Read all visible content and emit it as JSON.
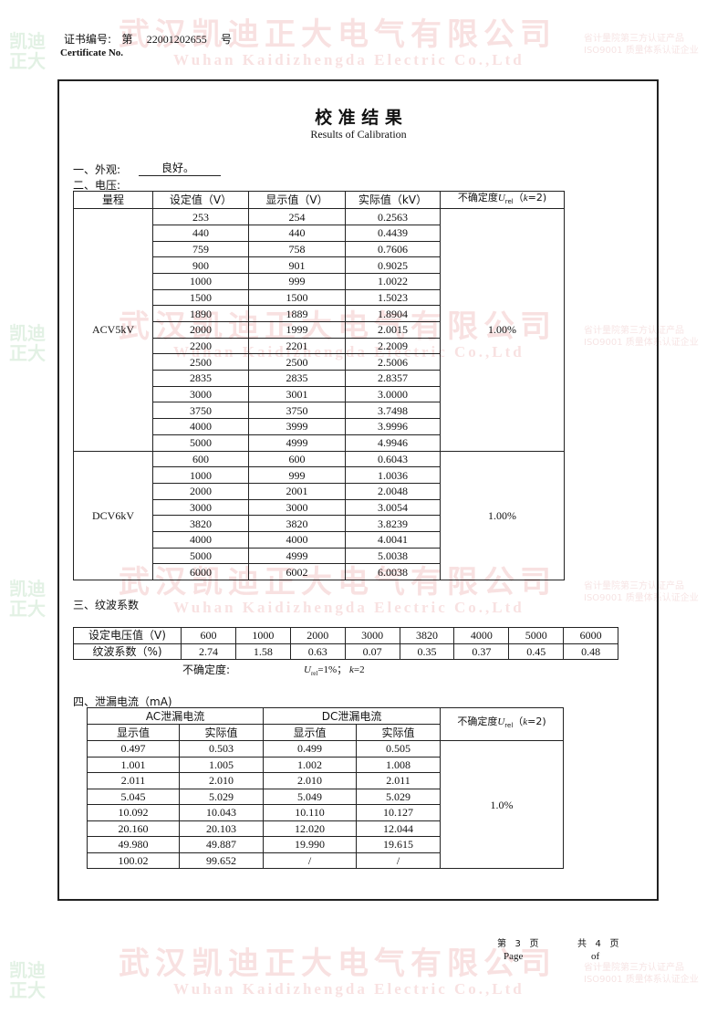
{
  "watermark": {
    "company_cn": "武汉凯迪正大电气有限公司",
    "company_en": "Wuhan Kaidizhengda Electric Co.,Ltd",
    "logo_text_1": "凯迪",
    "logo_text_2": "正大",
    "badge_line1": "省计量院第三方认证产品",
    "badge_line2": "ISO9001 质量体系认证企业"
  },
  "header": {
    "cert_label": "证书编号:",
    "num_prefix": "第",
    "cert_no": "22001202655",
    "num_suffix": "号",
    "cert_label_en": "Certificate No."
  },
  "title": "校 准 结 果",
  "subtitle": "Results of Calibration",
  "appearance": {
    "label": "一、外观:",
    "value": "良好。"
  },
  "voltage": {
    "label": "二、电压:",
    "headers": [
      "量程",
      "设定值（V）",
      "显示值（V）",
      "实际值（kV）"
    ],
    "uncertainty_header": {
      "prefix": "不确定度",
      "symbol": "U",
      "sub": "rel",
      "open": "（",
      "k": "k",
      "close": "=2)"
    },
    "groups": [
      {
        "range": "ACV5kV",
        "uncertainty": "1.00%",
        "rows": [
          [
            "253",
            "254",
            "0.2563"
          ],
          [
            "440",
            "440",
            "0.4439"
          ],
          [
            "759",
            "758",
            "0.7606"
          ],
          [
            "900",
            "901",
            "0.9025"
          ],
          [
            "1000",
            "999",
            "1.0022"
          ],
          [
            "1500",
            "1500",
            "1.5023"
          ],
          [
            "1890",
            "1889",
            "1.8904"
          ],
          [
            "2000",
            "1999",
            "2.0015"
          ],
          [
            "2200",
            "2201",
            "2.2009"
          ],
          [
            "2500",
            "2500",
            "2.5006"
          ],
          [
            "2835",
            "2835",
            "2.8357"
          ],
          [
            "3000",
            "3001",
            "3.0000"
          ],
          [
            "3750",
            "3750",
            "3.7498"
          ],
          [
            "4000",
            "3999",
            "3.9996"
          ],
          [
            "5000",
            "4999",
            "4.9946"
          ]
        ]
      },
      {
        "range": "DCV6kV",
        "uncertainty": "1.00%",
        "rows": [
          [
            "600",
            "600",
            "0.6043"
          ],
          [
            "1000",
            "999",
            "1.0036"
          ],
          [
            "2000",
            "2001",
            "2.0048"
          ],
          [
            "3000",
            "3000",
            "3.0054"
          ],
          [
            "3820",
            "3820",
            "3.8239"
          ],
          [
            "4000",
            "4000",
            "4.0041"
          ],
          [
            "5000",
            "4999",
            "5.0038"
          ],
          [
            "6000",
            "6002",
            "6.0038"
          ]
        ]
      }
    ]
  },
  "ripple": {
    "label": "三、纹波系数",
    "row_labels": [
      "设定电压值（V)",
      "纹波系数（%)"
    ],
    "set_voltages": [
      "600",
      "1000",
      "2000",
      "3000",
      "3820",
      "4000",
      "5000",
      "6000"
    ],
    "coefficients": [
      "2.74",
      "1.58",
      "0.63",
      "0.07",
      "0.35",
      "0.37",
      "0.45",
      "0.48"
    ],
    "uncertainty_label": "不确定度:",
    "uncertainty_symbol": "U",
    "uncertainty_sub": "rel",
    "uncertainty_value": "=1%；",
    "k_symbol": "k",
    "k_value": "=2"
  },
  "leakage": {
    "label": "四、泄漏电流（mA)",
    "group_headers": [
      "AC泄漏电流",
      "DC泄漏电流"
    ],
    "sub_headers": [
      "显示值",
      "实际值",
      "显示值",
      "实际值"
    ],
    "uncertainty_header": {
      "prefix": "不确定度",
      "symbol": "U",
      "sub": "rel",
      "open": "（",
      "k": "k",
      "close": "=2)"
    },
    "uncertainty": "1.0%",
    "rows": [
      [
        "0.497",
        "0.503",
        "0.499",
        "0.505"
      ],
      [
        "1.001",
        "1.005",
        "1.002",
        "1.008"
      ],
      [
        "2.011",
        "2.010",
        "2.010",
        "2.011"
      ],
      [
        "5.045",
        "5.029",
        "5.049",
        "5.029"
      ],
      [
        "10.092",
        "10.043",
        "10.110",
        "10.127"
      ],
      [
        "20.160",
        "20.103",
        "12.020",
        "12.044"
      ],
      [
        "49.980",
        "49.887",
        "19.990",
        "19.615"
      ],
      [
        "100.02",
        "99.652",
        "/",
        "/"
      ]
    ]
  },
  "footer": {
    "page_prefix": "第",
    "page": "3",
    "page_suffix": "页",
    "total_prefix": "共",
    "total": "4",
    "total_suffix": "页",
    "page_en": "Page",
    "of_en": "of"
  }
}
